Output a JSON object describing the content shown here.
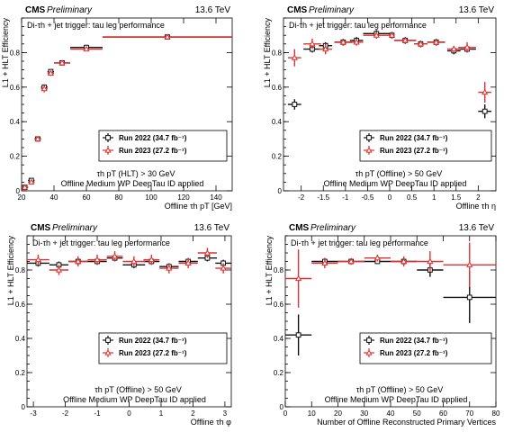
{
  "header": {
    "cms": "CMS",
    "preliminary": "Preliminary",
    "energy": "13.6 TeV"
  },
  "colors": {
    "run2022": "#111111",
    "run2023": "#e03030"
  },
  "chart_data": [
    {
      "id": "pt",
      "type": "scatter",
      "title": "Di-τh + jet trigger: tau leg performance",
      "xlabel": "Offline τh pT [GeV]",
      "ylabel": "L1 + HLT Efficiency",
      "xlim": [
        20,
        150
      ],
      "ylim": [
        0,
        1
      ],
      "xticks": [
        20,
        40,
        60,
        80,
        100,
        120,
        140
      ],
      "yticks": [
        0,
        0.2,
        0.4,
        0.6,
        0.8
      ],
      "cut_label": "τh pT (HLT) > 30 GeV",
      "id_label": "Offline Medium WP DeepTau ID applied",
      "legend_position": "middle-right",
      "series": [
        {
          "name": "Run 2022 (34.7 fb⁻¹)",
          "marker": "square",
          "color": "#111111",
          "x": [
            22,
            26,
            30,
            34,
            38,
            45,
            60,
            110
          ],
          "xw": [
            2,
            2,
            2,
            2,
            2,
            5,
            10,
            40
          ],
          "y": [
            0.02,
            0.06,
            0.3,
            0.6,
            0.69,
            0.74,
            0.83,
            0.89
          ],
          "ye": [
            0.01,
            0.01,
            0.01,
            0.015,
            0.01,
            0.01,
            0.01,
            0.01
          ]
        },
        {
          "name": "Run 2023 (27.2 fb⁻¹)",
          "marker": "triangle",
          "color": "#e03030",
          "x": [
            22,
            26,
            30,
            34,
            38,
            45,
            60,
            110
          ],
          "xw": [
            2,
            2,
            2,
            2,
            2,
            5,
            10,
            40
          ],
          "y": [
            0.02,
            0.05,
            0.3,
            0.59,
            0.68,
            0.74,
            0.82,
            0.89
          ],
          "ye": [
            0.01,
            0.01,
            0.015,
            0.02,
            0.015,
            0.01,
            0.01,
            0.01
          ]
        }
      ]
    },
    {
      "id": "eta",
      "type": "scatter",
      "title": "Di-τh + jet trigger: tau leg performance",
      "xlabel": "Offline τh η",
      "ylabel": "L1 + HLT Efficiency",
      "xlim": [
        -2.4,
        2.4
      ],
      "ylim": [
        0,
        1
      ],
      "xticks": [
        -2,
        -1.5,
        -1,
        -0.5,
        0,
        0.5,
        1,
        1.5,
        2
      ],
      "yticks": [
        0,
        0.2,
        0.4,
        0.6,
        0.8
      ],
      "cut_label": "τh pT (Offline) > 50 GeV",
      "id_label": "Offline Medium WP DeepTau ID applied",
      "legend_position": "middle-right",
      "series": [
        {
          "name": "Run 2022 (34.7 fb⁻¹)",
          "marker": "square",
          "color": "#111111",
          "x": [
            -2.15,
            -1.75,
            -1.45,
            -1.05,
            -0.75,
            -0.3,
            0.05,
            0.35,
            0.7,
            1.05,
            1.45,
            1.75,
            2.15
          ],
          "xw": [
            0.15,
            0.2,
            0.15,
            0.2,
            0.15,
            0.3,
            0.05,
            0.25,
            0.15,
            0.2,
            0.15,
            0.2,
            0.15
          ],
          "y": [
            0.5,
            0.82,
            0.84,
            0.86,
            0.87,
            0.91,
            0.9,
            0.87,
            0.85,
            0.86,
            0.81,
            0.82,
            0.46
          ],
          "ye": [
            0.03,
            0.02,
            0.02,
            0.02,
            0.02,
            0.02,
            0.02,
            0.02,
            0.02,
            0.02,
            0.02,
            0.02,
            0.04
          ]
        },
        {
          "name": "Run 2023 (27.2 fb⁻¹)",
          "marker": "triangle",
          "color": "#e03030",
          "x": [
            -2.15,
            -1.75,
            -1.45,
            -1.05,
            -0.75,
            -0.3,
            0.05,
            0.35,
            0.7,
            1.05,
            1.45,
            1.75,
            2.15
          ],
          "xw": [
            0.15,
            0.2,
            0.15,
            0.2,
            0.15,
            0.3,
            0.05,
            0.25,
            0.15,
            0.2,
            0.15,
            0.2,
            0.15
          ],
          "y": [
            0.77,
            0.85,
            0.82,
            0.86,
            0.86,
            0.9,
            0.9,
            0.87,
            0.85,
            0.86,
            0.82,
            0.83,
            0.57
          ],
          "ye": [
            0.05,
            0.03,
            0.03,
            0.02,
            0.02,
            0.02,
            0.02,
            0.02,
            0.02,
            0.02,
            0.02,
            0.03,
            0.06
          ]
        }
      ]
    },
    {
      "id": "phi",
      "type": "scatter",
      "title": "Di-τh + jet trigger: tau leg performance",
      "xlabel": "Offline τh φ",
      "ylabel": "L1 + HLT Efficiency",
      "xlim": [
        -3.2,
        3.2
      ],
      "ylim": [
        0,
        1
      ],
      "xticks": [
        -3,
        -2,
        -1,
        0,
        1,
        2,
        3
      ],
      "yticks": [
        0,
        0.2,
        0.4,
        0.6,
        0.8
      ],
      "cut_label": "τh pT (Offline) > 50 GeV",
      "id_label": "Offline Medium WP DeepTau ID applied",
      "legend_position": "middle-right",
      "series": [
        {
          "name": "Run 2022 (34.7 fb⁻¹)",
          "marker": "square",
          "color": "#111111",
          "x": [
            -2.85,
            -2.2,
            -1.6,
            -1.0,
            -0.45,
            0.15,
            0.7,
            1.25,
            1.85,
            2.45,
            2.95
          ],
          "xw": [
            0.35,
            0.3,
            0.3,
            0.3,
            0.25,
            0.35,
            0.25,
            0.3,
            0.3,
            0.3,
            0.25
          ],
          "y": [
            0.84,
            0.83,
            0.85,
            0.85,
            0.87,
            0.83,
            0.85,
            0.82,
            0.85,
            0.87,
            0.84
          ],
          "ye": [
            0.02,
            0.02,
            0.02,
            0.02,
            0.02,
            0.02,
            0.02,
            0.02,
            0.02,
            0.02,
            0.02
          ]
        },
        {
          "name": "Run 2023 (27.2 fb⁻¹)",
          "marker": "triangle",
          "color": "#e03030",
          "x": [
            -2.85,
            -2.2,
            -1.6,
            -1.0,
            -0.45,
            0.15,
            0.7,
            1.25,
            1.85,
            2.45,
            2.95
          ],
          "xw": [
            0.35,
            0.3,
            0.3,
            0.3,
            0.25,
            0.35,
            0.25,
            0.3,
            0.3,
            0.3,
            0.25
          ],
          "y": [
            0.86,
            0.8,
            0.85,
            0.86,
            0.88,
            0.85,
            0.86,
            0.81,
            0.84,
            0.9,
            0.81
          ],
          "ye": [
            0.03,
            0.03,
            0.03,
            0.03,
            0.03,
            0.03,
            0.03,
            0.03,
            0.03,
            0.03,
            0.03
          ]
        }
      ]
    },
    {
      "id": "pv",
      "type": "scatter",
      "title": "Di-τh + jet trigger: tau leg performance",
      "xlabel": "Number of Offline Reconstructed Primary Vertices",
      "ylabel": "L1 + HLT Efficiency",
      "xlim": [
        0,
        80
      ],
      "ylim": [
        0,
        1
      ],
      "xticks": [
        0,
        10,
        20,
        30,
        40,
        50,
        60,
        70,
        80
      ],
      "yticks": [
        0,
        0.2,
        0.4,
        0.6,
        0.8
      ],
      "cut_label": "τh pT (Offline) > 50 GeV",
      "id_label": "Offline Medium WP DeepTau ID applied",
      "legend_position": "bottom-right",
      "series": [
        {
          "name": "Run 2022 (34.7 fb⁻¹)",
          "marker": "square",
          "color": "#111111",
          "x": [
            5,
            15,
            25,
            35,
            45,
            55,
            70
          ],
          "xw": [
            5,
            5,
            5,
            5,
            5,
            5,
            10
          ],
          "y": [
            0.42,
            0.85,
            0.85,
            0.85,
            0.85,
            0.8,
            0.64
          ],
          "ye": [
            0.12,
            0.02,
            0.01,
            0.01,
            0.02,
            0.04,
            0.15
          ]
        },
        {
          "name": "Run 2023 (27.2 fb⁻¹)",
          "marker": "triangle",
          "color": "#e03030",
          "x": [
            5,
            15,
            25,
            35,
            45,
            55,
            70
          ],
          "xw": [
            5,
            5,
            5,
            5,
            5,
            5,
            10
          ],
          "y": [
            0.75,
            0.84,
            0.85,
            0.87,
            0.85,
            0.85,
            0.83
          ],
          "ye": [
            0.17,
            0.03,
            0.02,
            0.02,
            0.03,
            0.06,
            0.13
          ]
        }
      ]
    }
  ]
}
